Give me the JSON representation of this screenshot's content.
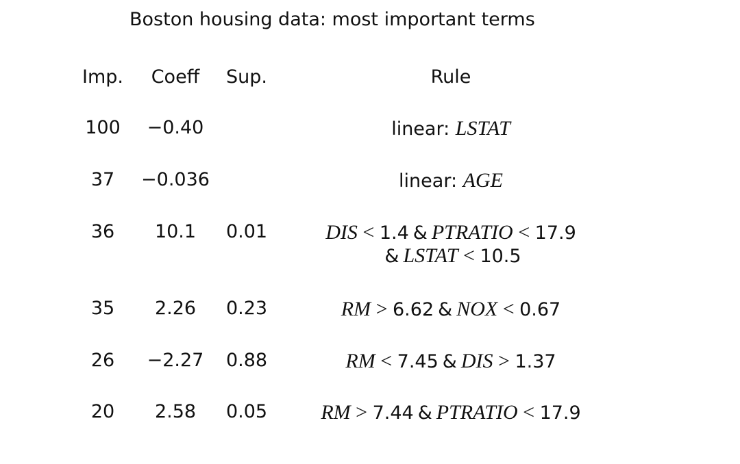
{
  "title": "Boston housing data: most important terms",
  "table": {
    "headers": {
      "imp": "Imp.",
      "coeff": "Coeff",
      "sup": "Sup.",
      "rule": "Rule"
    },
    "rows": [
      {
        "imp": "100",
        "coeff": "−0.40",
        "sup": "",
        "rule_lines": [
          [
            {
              "text": "linear: ",
              "type": "plain"
            },
            {
              "text": "LSTAT",
              "type": "var"
            }
          ]
        ]
      },
      {
        "imp": "37",
        "coeff": "−0.036",
        "sup": "",
        "rule_lines": [
          [
            {
              "text": "linear: ",
              "type": "plain"
            },
            {
              "text": "AGE",
              "type": "var"
            }
          ]
        ]
      },
      {
        "imp": "36",
        "coeff": "10.1",
        "sup": "0.01",
        "rule_lines": [
          [
            {
              "text": "DIS",
              "type": "var"
            },
            {
              "text": " < ",
              "type": "op"
            },
            {
              "text": "1.4",
              "type": "plain"
            },
            {
              "text": "&",
              "type": "amp"
            },
            {
              "text": "PTRATIO",
              "type": "var"
            },
            {
              "text": " < ",
              "type": "op"
            },
            {
              "text": "17.9",
              "type": "plain"
            }
          ],
          [
            {
              "text": "&",
              "type": "amp"
            },
            {
              "text": "LSTAT",
              "type": "var"
            },
            {
              "text": " < ",
              "type": "op"
            },
            {
              "text": "10.5",
              "type": "plain"
            }
          ]
        ]
      },
      {
        "imp": "35",
        "coeff": "2.26",
        "sup": "0.23",
        "rule_lines": [
          [
            {
              "text": "RM",
              "type": "var"
            },
            {
              "text": " > ",
              "type": "op"
            },
            {
              "text": "6.62",
              "type": "plain"
            },
            {
              "text": "&",
              "type": "amp"
            },
            {
              "text": "NOX",
              "type": "var"
            },
            {
              "text": " < ",
              "type": "op"
            },
            {
              "text": "0.67",
              "type": "plain"
            }
          ]
        ]
      },
      {
        "imp": "26",
        "coeff": "−2.27",
        "sup": "0.88",
        "rule_lines": [
          [
            {
              "text": "RM",
              "type": "var"
            },
            {
              "text": " < ",
              "type": "op"
            },
            {
              "text": "7.45",
              "type": "plain"
            },
            {
              "text": "&",
              "type": "amp"
            },
            {
              "text": "DIS",
              "type": "var"
            },
            {
              "text": " > ",
              "type": "op"
            },
            {
              "text": "1.37",
              "type": "plain"
            }
          ]
        ]
      },
      {
        "imp": "20",
        "coeff": "2.58",
        "sup": "0.05",
        "rule_lines": [
          [
            {
              "text": "RM",
              "type": "var"
            },
            {
              "text": " > ",
              "type": "op"
            },
            {
              "text": "7.44",
              "type": "plain"
            },
            {
              "text": "&",
              "type": "amp"
            },
            {
              "text": "PTRATIO",
              "type": "var"
            },
            {
              "text": " < ",
              "type": "op"
            },
            {
              "text": "17.9",
              "type": "plain"
            }
          ]
        ]
      }
    ]
  }
}
